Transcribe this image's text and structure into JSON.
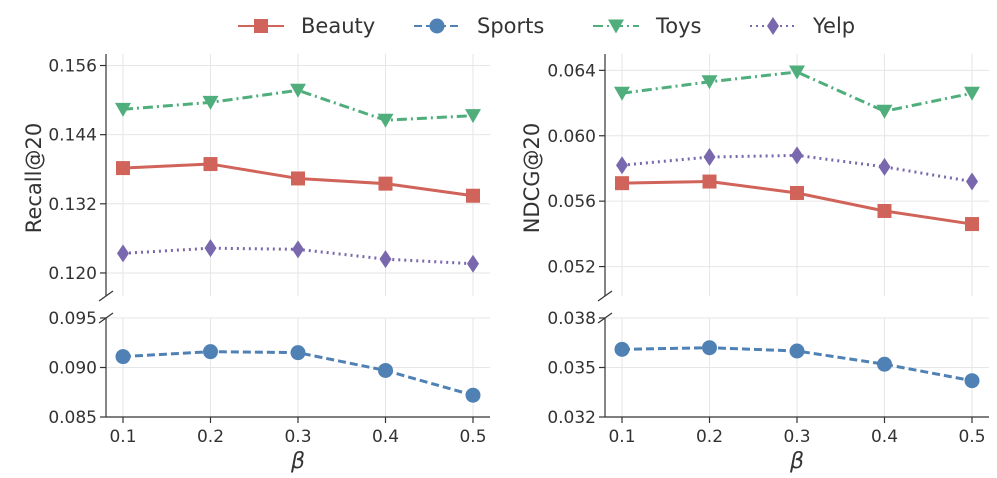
{
  "legend": [
    {
      "name": "Beauty",
      "color": "#d1645a",
      "dash": "solid",
      "marker": "square"
    },
    {
      "name": "Sports",
      "color": "#4f81b5",
      "dash": "dashed",
      "marker": "circle"
    },
    {
      "name": "Toys",
      "color": "#4fae7b",
      "dash": "dashdot",
      "marker": "triangle-down"
    },
    {
      "name": "Yelp",
      "color": "#7a68ae",
      "dash": "dotted",
      "marker": "diamond"
    }
  ],
  "chart_data": [
    {
      "type": "line",
      "ylabel": "Recall@20",
      "xlabel": "β",
      "x": [
        0.1,
        0.2,
        0.3,
        0.4,
        0.5
      ],
      "x_tick_labels": [
        "0.1",
        "0.2",
        "0.3",
        "0.4",
        "0.5"
      ],
      "broken_axis": true,
      "top_panel": {
        "ylim": [
          0.116,
          0.158
        ],
        "yticks": [
          0.12,
          0.132,
          0.144,
          0.156
        ],
        "ytick_labels": [
          "0.120",
          "0.132",
          "0.144",
          "0.156"
        ],
        "series": [
          {
            "name": "Beauty",
            "values": [
              0.1382,
              0.1389,
              0.1364,
              0.1355,
              0.1334
            ]
          },
          {
            "name": "Toys",
            "values": [
              0.1484,
              0.1496,
              0.1517,
              0.1465,
              0.1473
            ]
          },
          {
            "name": "Yelp",
            "values": [
              0.1234,
              0.1243,
              0.1241,
              0.1224,
              0.1216
            ]
          }
        ]
      },
      "bottom_panel": {
        "ylim": [
          0.085,
          0.095
        ],
        "yticks": [
          0.085,
          0.09,
          0.095
        ],
        "ytick_labels": [
          "0.085",
          "0.090",
          "0.095"
        ],
        "series": [
          {
            "name": "Sports",
            "values": [
              0.0911,
              0.0916,
              0.0915,
              0.0897,
              0.0872
            ]
          }
        ]
      }
    },
    {
      "type": "line",
      "ylabel": "NDCG@20",
      "xlabel": "β",
      "x": [
        0.1,
        0.2,
        0.3,
        0.4,
        0.5
      ],
      "x_tick_labels": [
        "0.1",
        "0.2",
        "0.3",
        "0.4",
        "0.5"
      ],
      "broken_axis": true,
      "top_panel": {
        "ylim": [
          0.0502,
          0.065
        ],
        "yticks": [
          0.052,
          0.056,
          0.06,
          0.064
        ],
        "ytick_labels": [
          "0.052",
          "0.056",
          "0.060",
          "0.064"
        ],
        "series": [
          {
            "name": "Beauty",
            "values": [
              0.0571,
              0.0572,
              0.0565,
              0.0554,
              0.0546
            ]
          },
          {
            "name": "Toys",
            "values": [
              0.0626,
              0.0633,
              0.0639,
              0.0615,
              0.0626
            ]
          },
          {
            "name": "Yelp",
            "values": [
              0.0582,
              0.0587,
              0.0588,
              0.0581,
              0.0572
            ]
          }
        ]
      },
      "bottom_panel": {
        "ylim": [
          0.032,
          0.038
        ],
        "yticks": [
          0.032,
          0.035,
          0.038
        ],
        "ytick_labels": [
          "0.032",
          "0.035",
          "0.038"
        ],
        "series": [
          {
            "name": "Sports",
            "values": [
              0.0361,
              0.0362,
              0.036,
              0.0352,
              0.0342
            ]
          }
        ]
      }
    }
  ]
}
